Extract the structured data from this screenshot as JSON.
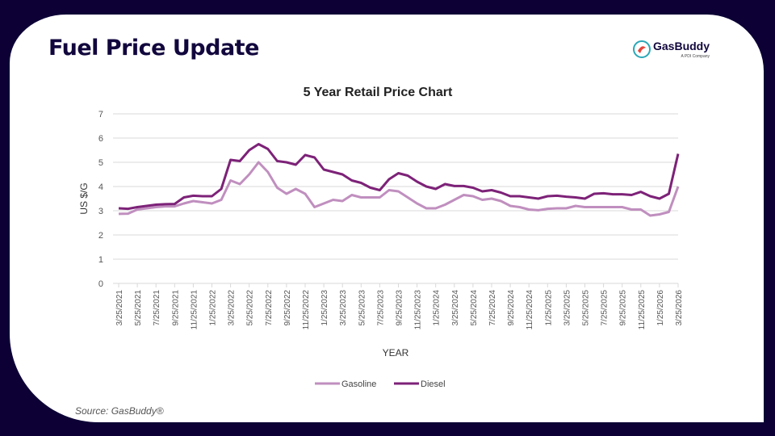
{
  "header": {
    "title": "Fuel Price Update",
    "logo_text": "GasBuddy",
    "logo_subtext": "A PDI Company"
  },
  "source": "Source: GasBuddy®",
  "colors": {
    "background": "#0c0035",
    "gasoline": "#c08fbf",
    "diesel": "#7d2278",
    "title": "#12073d"
  },
  "chart_data": {
    "type": "line",
    "title": "5 Year Retail Price Chart",
    "xlabel": "YEAR",
    "ylabel": "US $/G",
    "ylim": [
      0,
      7
    ],
    "yticks": [
      "0",
      "1",
      "2",
      "3",
      "4",
      "5",
      "6",
      "7"
    ],
    "grid": true,
    "legend_placement": "bottom",
    "tick_labels": [
      "3/25/2021",
      "5/25/2021",
      "7/25/2021",
      "9/25/2021",
      "11/25/2021",
      "1/25/2022",
      "3/25/2022",
      "5/25/2022",
      "7/25/2022",
      "9/25/2022",
      "11/25/2022",
      "1/25/2023",
      "3/25/2023",
      "5/25/2023",
      "7/25/2023",
      "9/25/2023",
      "11/25/2023",
      "1/25/2024",
      "3/25/2024",
      "5/25/2024",
      "7/25/2024",
      "9/25/2024",
      "11/25/2024",
      "1/25/2025",
      "3/25/2025",
      "5/25/2025",
      "7/25/2025",
      "9/25/2025",
      "11/25/2025",
      "1/25/2026",
      "3/25/2026"
    ],
    "x": [
      "2021-03",
      "2021-04",
      "2021-05",
      "2021-06",
      "2021-07",
      "2021-08",
      "2021-09",
      "2021-10",
      "2021-11",
      "2021-12",
      "2022-01",
      "2022-02",
      "2022-03",
      "2022-04",
      "2022-05",
      "2022-06",
      "2022-07",
      "2022-08",
      "2022-09",
      "2022-10",
      "2022-11",
      "2022-12",
      "2023-01",
      "2023-02",
      "2023-03",
      "2023-04",
      "2023-05",
      "2023-06",
      "2023-07",
      "2023-08",
      "2023-09",
      "2023-10",
      "2023-11",
      "2023-12",
      "2024-01",
      "2024-02",
      "2024-03",
      "2024-04",
      "2024-05",
      "2024-06",
      "2024-07",
      "2024-08",
      "2024-09",
      "2024-10",
      "2024-11",
      "2024-12",
      "2025-01",
      "2025-02",
      "2025-03",
      "2025-04",
      "2025-05",
      "2025-06",
      "2025-07",
      "2025-08",
      "2025-09",
      "2025-10",
      "2025-11",
      "2025-12",
      "2026-01",
      "2026-02",
      "2026-03"
    ],
    "series": [
      {
        "name": "Gasoline",
        "color": "#c08fbf",
        "values": [
          2.87,
          2.88,
          3.05,
          3.1,
          3.15,
          3.18,
          3.18,
          3.3,
          3.4,
          3.35,
          3.3,
          3.45,
          4.25,
          4.1,
          4.5,
          5.0,
          4.6,
          3.95,
          3.7,
          3.9,
          3.7,
          3.15,
          3.3,
          3.45,
          3.4,
          3.65,
          3.55,
          3.55,
          3.55,
          3.85,
          3.8,
          3.55,
          3.3,
          3.1,
          3.1,
          3.25,
          3.45,
          3.65,
          3.6,
          3.45,
          3.5,
          3.4,
          3.2,
          3.15,
          3.05,
          3.02,
          3.08,
          3.1,
          3.1,
          3.2,
          3.15,
          3.15,
          3.15,
          3.15,
          3.15,
          3.05,
          3.05,
          2.8,
          2.85,
          2.95,
          4.0
        ]
      },
      {
        "name": "Diesel",
        "color": "#7d2278",
        "values": [
          3.1,
          3.08,
          3.15,
          3.2,
          3.25,
          3.27,
          3.28,
          3.55,
          3.62,
          3.6,
          3.6,
          3.9,
          5.1,
          5.05,
          5.5,
          5.75,
          5.55,
          5.05,
          5.0,
          4.9,
          5.3,
          5.2,
          4.7,
          4.6,
          4.5,
          4.25,
          4.15,
          3.95,
          3.85,
          4.3,
          4.55,
          4.45,
          4.2,
          4.0,
          3.9,
          4.1,
          4.02,
          4.02,
          3.95,
          3.8,
          3.85,
          3.75,
          3.6,
          3.6,
          3.55,
          3.5,
          3.6,
          3.62,
          3.58,
          3.55,
          3.5,
          3.7,
          3.72,
          3.68,
          3.68,
          3.65,
          3.78,
          3.6,
          3.5,
          3.7,
          5.35
        ]
      }
    ]
  }
}
